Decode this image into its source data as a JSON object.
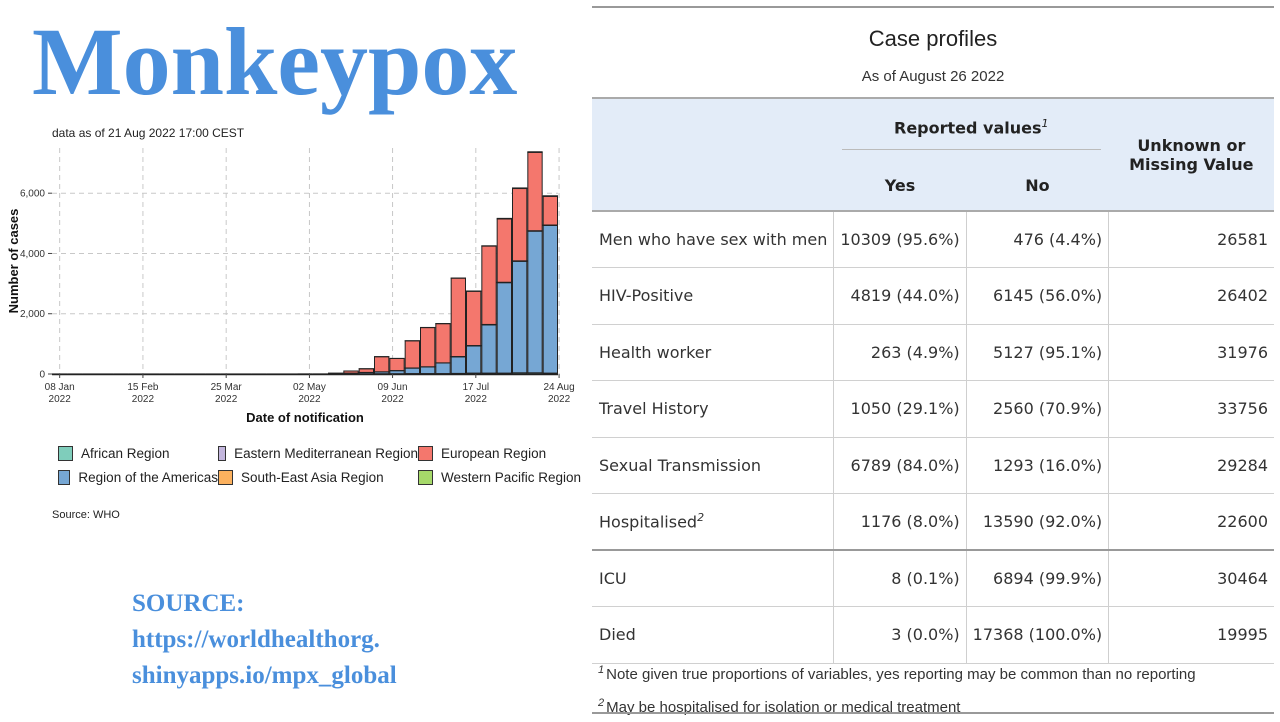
{
  "title": "Monkeypox",
  "chart_caption": "data as of 21 Aug 2022 17:00 CEST",
  "chart_source": "Source: WHO",
  "source_note": [
    "SOURCE:",
    "https://worldhealthorg.",
    "shinyapps.io/mpx_global"
  ],
  "colors": {
    "title": "#4a8fdc",
    "african": "#7fcdbb",
    "eastern_med": "#c3b6dd",
    "european": "#f4776d",
    "americas": "#76a7d4",
    "south_east_asia": "#fcb15e",
    "western_pacific": "#a6d96a"
  },
  "chart_data": {
    "type": "bar",
    "stacked": true,
    "title": "",
    "xlabel": "Date of notification",
    "ylabel": "Number of cases",
    "ylim": [
      0,
      7500
    ],
    "yticks": [
      0,
      2000,
      4000,
      6000
    ],
    "ytick_labels": [
      "0",
      "2,000",
      "4,000",
      "6,000"
    ],
    "x_tick_labels": [
      [
        "08 Jan",
        "2022"
      ],
      [
        "15 Feb",
        "2022"
      ],
      [
        "25 Mar",
        "2022"
      ],
      [
        "02 May",
        "2022"
      ],
      [
        "09 Jun",
        "2022"
      ],
      [
        "17 Jul",
        "2022"
      ],
      [
        "24 Aug",
        "2022"
      ]
    ],
    "x_tick_bins": [
      0,
      5.43,
      10.86,
      16.29,
      21.71,
      27.14,
      32.57
    ],
    "bin_start": "2022-01-03",
    "grid": true,
    "legend_position": "bottom",
    "categories": [
      "2022-01-03",
      "2022-01-10",
      "2022-01-17",
      "2022-01-24",
      "2022-01-31",
      "2022-02-07",
      "2022-02-14",
      "2022-02-21",
      "2022-02-28",
      "2022-03-07",
      "2022-03-14",
      "2022-03-21",
      "2022-03-28",
      "2022-04-04",
      "2022-04-11",
      "2022-04-18",
      "2022-04-25",
      "2022-05-02",
      "2022-05-09",
      "2022-05-16",
      "2022-05-23",
      "2022-05-30",
      "2022-06-06",
      "2022-06-13",
      "2022-06-20",
      "2022-06-27",
      "2022-07-04",
      "2022-07-11",
      "2022-07-18",
      "2022-07-25",
      "2022-08-01",
      "2022-08-08",
      "2022-08-15"
    ],
    "series": [
      {
        "name": "African Region",
        "color": "#7fcdbb",
        "values": [
          3,
          3,
          3,
          3,
          3,
          3,
          3,
          3,
          3,
          3,
          3,
          3,
          3,
          3,
          3,
          3,
          5,
          5,
          5,
          8,
          10,
          10,
          10,
          15,
          15,
          15,
          20,
          30,
          30,
          30,
          40,
          40,
          30
        ]
      },
      {
        "name": "Region of the Americas",
        "color": "#76a7d4",
        "values": [
          0,
          0,
          0,
          0,
          0,
          0,
          0,
          0,
          0,
          0,
          0,
          0,
          0,
          0,
          0,
          0,
          0,
          0,
          5,
          20,
          40,
          60,
          100,
          180,
          220,
          350,
          550,
          900,
          1600,
          3000,
          3700,
          4700,
          4900
        ]
      },
      {
        "name": "Eastern Mediterranean Region",
        "color": "#c3b6dd",
        "values": [
          0,
          0,
          0,
          0,
          0,
          0,
          0,
          0,
          0,
          0,
          0,
          0,
          0,
          0,
          0,
          0,
          0,
          0,
          0,
          2,
          3,
          3,
          5,
          5,
          5,
          5,
          5,
          10,
          10,
          10,
          10,
          10,
          10
        ]
      },
      {
        "name": "South-East Asia Region",
        "color": "#fcb15e",
        "values": [
          0,
          0,
          0,
          0,
          0,
          0,
          0,
          0,
          0,
          0,
          0,
          0,
          0,
          0,
          0,
          0,
          0,
          0,
          0,
          0,
          0,
          0,
          0,
          0,
          0,
          0,
          5,
          5,
          5,
          5,
          5,
          5,
          5
        ]
      },
      {
        "name": "European Region",
        "color": "#f4776d",
        "values": [
          0,
          0,
          0,
          0,
          0,
          0,
          0,
          0,
          0,
          0,
          0,
          0,
          0,
          0,
          0,
          0,
          0,
          0,
          20,
          70,
          120,
          500,
          400,
          900,
          1300,
          1300,
          2600,
          1800,
          2600,
          2100,
          2400,
          2600,
          950
        ]
      },
      {
        "name": "Western Pacific Region",
        "color": "#a6d96a",
        "values": [
          0,
          0,
          0,
          0,
          0,
          0,
          0,
          0,
          0,
          0,
          0,
          0,
          0,
          0,
          0,
          0,
          0,
          0,
          0,
          0,
          2,
          3,
          3,
          5,
          5,
          5,
          5,
          10,
          10,
          20,
          20,
          20,
          20
        ]
      }
    ],
    "legend_order": [
      "African Region",
      "Eastern Mediterranean Region",
      "European Region",
      "Region of the Americas",
      "South-East Asia Region",
      "Western Pacific Region"
    ]
  },
  "table": {
    "title": "Case profiles",
    "subtitle": "As of August 26 2022",
    "header_reported": "Reported values",
    "header_reported_note": "1",
    "header_yes": "Yes",
    "header_no": "No",
    "header_unknown": "Unknown or Missing Value",
    "rows": [
      {
        "label": "Men who have sex with men",
        "note": "",
        "yes": "10309 (95.6%)",
        "no": "476 (4.4%)",
        "unknown": "26581"
      },
      {
        "label": "HIV-Positive",
        "note": "",
        "yes": "4819 (44.0%)",
        "no": "6145 (56.0%)",
        "unknown": "26402"
      },
      {
        "label": "Health worker",
        "note": "",
        "yes": "263 (4.9%)",
        "no": "5127 (95.1%)",
        "unknown": "31976"
      },
      {
        "label": "Travel History",
        "note": "",
        "yes": "1050 (29.1%)",
        "no": "2560 (70.9%)",
        "unknown": "33756"
      },
      {
        "label": "Sexual Transmission",
        "note": "",
        "yes": "6789 (84.0%)",
        "no": "1293 (16.0%)",
        "unknown": "29284"
      },
      {
        "label": "Hospitalised",
        "note": "2",
        "yes": "1176 (8.0%)",
        "no": "13590 (92.0%)",
        "unknown": "22600"
      },
      {
        "label": "ICU",
        "note": "",
        "yes": "8 (0.1%)",
        "no": "6894 (99.9%)",
        "unknown": "30464"
      },
      {
        "label": "Died",
        "note": "",
        "yes": "3 (0.0%)",
        "no": "17368 (100.0%)",
        "unknown": "19995"
      }
    ],
    "footnotes": [
      {
        "mark": "1",
        "text": "Note given true proportions of variables, yes reporting may be common than no reporting"
      },
      {
        "mark": "2",
        "text": "May be hospitalised for isolation or medical treatment"
      }
    ]
  }
}
